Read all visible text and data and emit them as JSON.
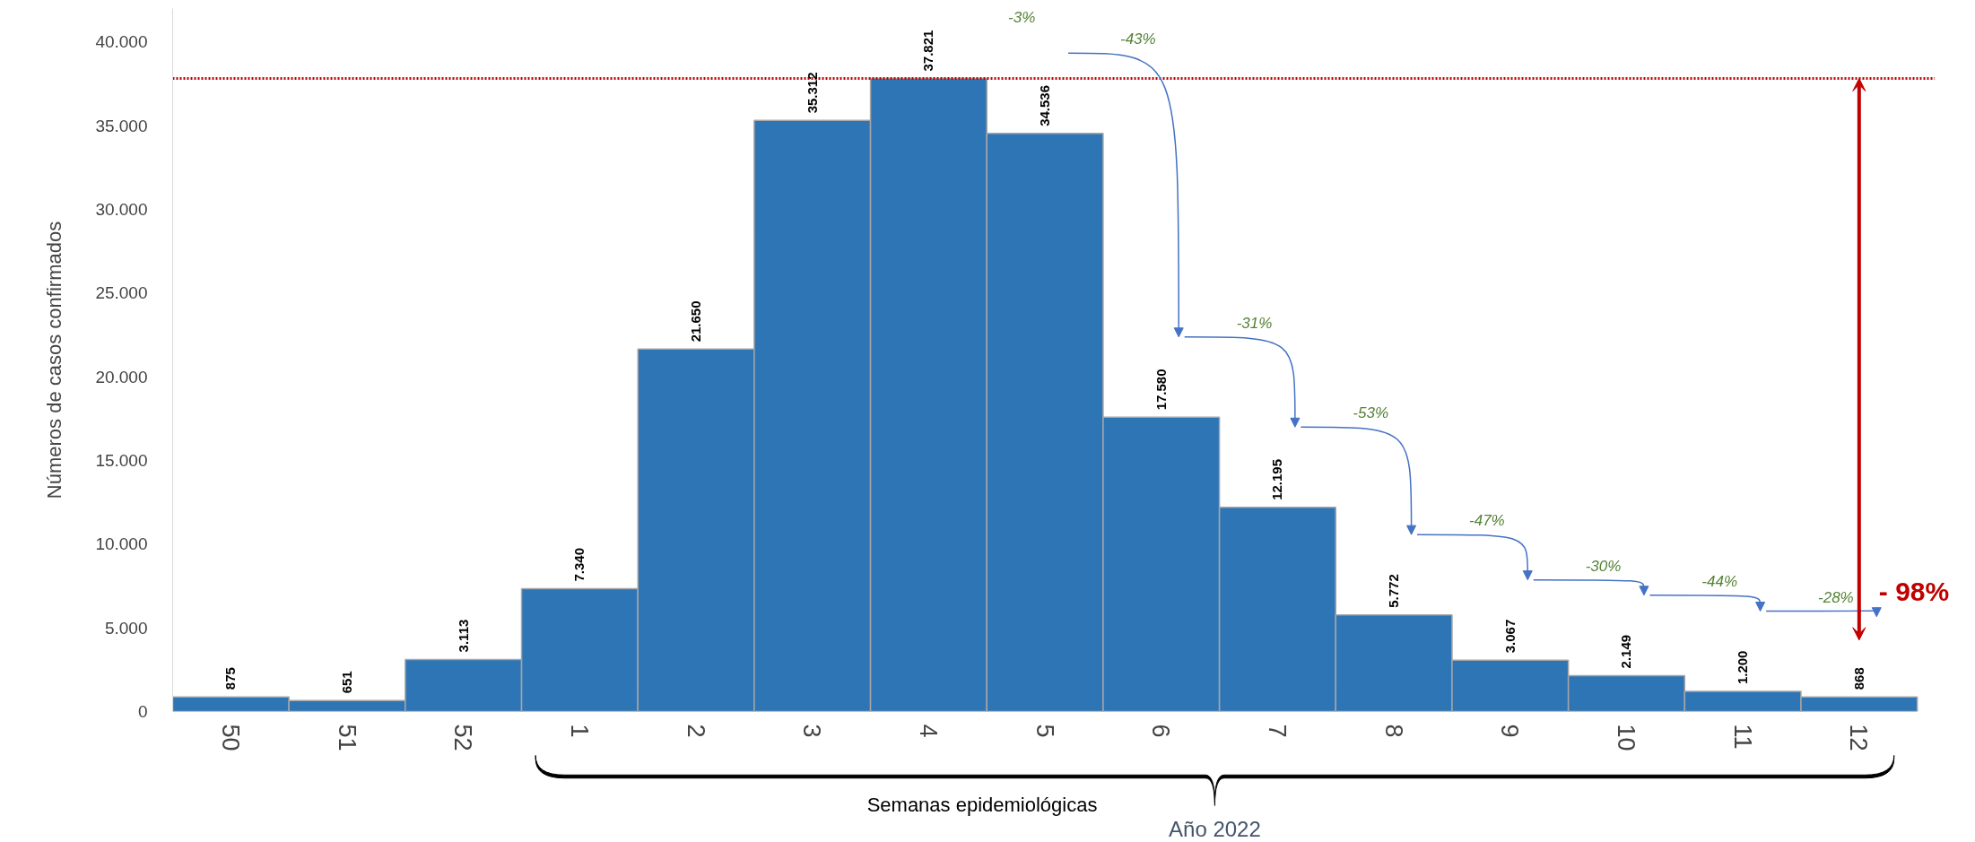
{
  "chart_data": {
    "type": "bar",
    "ylabel": "Números de casos confirmados",
    "xlabel": "Semanas epidemiológicas",
    "categories": [
      "50",
      "51",
      "52",
      "1",
      "2",
      "3",
      "4",
      "5",
      "6",
      "7",
      "8",
      "9",
      "10",
      "11",
      "12"
    ],
    "values": [
      875,
      651,
      3113,
      7340,
      21650,
      35312,
      37821,
      34536,
      17580,
      12195,
      5772,
      3067,
      2149,
      1200,
      868
    ],
    "value_labels": [
      "875",
      "651",
      "3.113",
      "7.340",
      "21.650",
      "35.312",
      "37.821",
      "34.536",
      "17.580",
      "12.195",
      "5.772",
      "3.067",
      "2.149",
      "1.200",
      "868"
    ],
    "color": "#2e75b6",
    "ylim": [
      0,
      42000
    ],
    "yticks": [
      0,
      {
        "value": 5000,
        "label": "5.000"
      },
      {
        "value": 10000,
        "label": "10.000"
      },
      {
        "value": 15000,
        "label": "15.000"
      },
      {
        "value": 20000,
        "label": "20.000"
      },
      {
        "value": 25000,
        "label": "25.000"
      },
      {
        "value": 30000,
        "label": "30.000"
      },
      {
        "value": 35000,
        "label": "35.000"
      },
      {
        "value": 40000,
        "label": "40.000"
      }
    ],
    "ref_lines": [
      {
        "axis": "y",
        "value": 37821,
        "color": "#c00000",
        "line_style": "dotted"
      }
    ],
    "annotations": [
      "-3%",
      "-43%",
      "-31%",
      "-53%",
      "-47%",
      "-30%",
      "-44%",
      "-28%",
      "- 98%",
      "Año 2022"
    ],
    "grid": false
  }
}
